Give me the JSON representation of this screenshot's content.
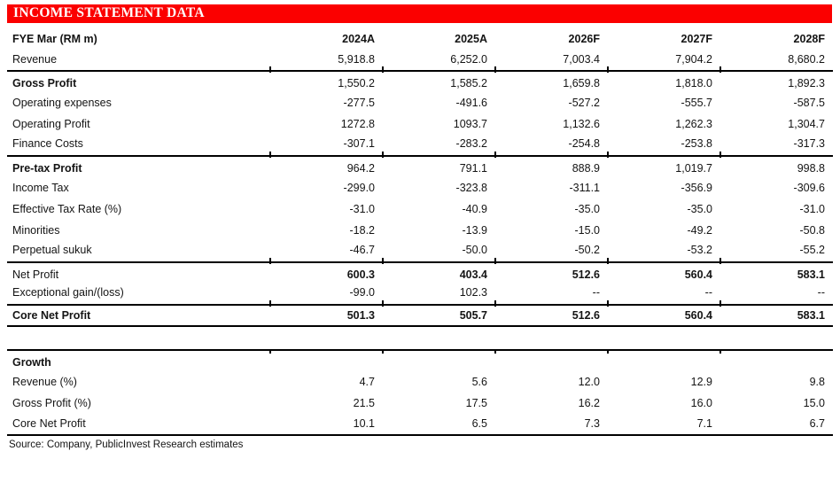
{
  "title": "INCOME STATEMENT DATA",
  "colors": {
    "header_bar_bg": "#fb0000",
    "header_bar_text": "#ffffff",
    "rule_color": "#000000"
  },
  "income_table": {
    "columns": [
      "FYE Mar (RM m)",
      "2024A",
      "2025A",
      "2026F",
      "2027F",
      "2028F"
    ],
    "sections": [
      {
        "rows": [
          {
            "label": "Revenue",
            "bold_label": false,
            "bold_values": false,
            "values": [
              "5,918.8",
              "6,252.0",
              "7,003.4",
              "7,904.2",
              "8,680.2"
            ]
          }
        ]
      },
      {
        "rows": [
          {
            "label": "Gross Profit",
            "bold_label": true,
            "bold_values": false,
            "values": [
              "1,550.2",
              "1,585.2",
              "1,659.8",
              "1,818.0",
              "1,892.3"
            ]
          },
          {
            "label": "Operating expenses",
            "bold_label": false,
            "bold_values": false,
            "values": [
              "-277.5",
              "-491.6",
              "-527.2",
              "-555.7",
              "-587.5"
            ]
          },
          {
            "label": "Operating Profit",
            "bold_label": false,
            "bold_values": false,
            "values": [
              "1272.8",
              "1093.7",
              "1,132.6",
              "1,262.3",
              "1,304.7"
            ]
          },
          {
            "label": "Finance Costs",
            "bold_label": false,
            "bold_values": false,
            "values": [
              "-307.1",
              "-283.2",
              "-254.8",
              "-253.8",
              "-317.3"
            ]
          }
        ]
      },
      {
        "rows": [
          {
            "label": "Pre-tax Profit",
            "bold_label": true,
            "bold_values": false,
            "values": [
              "964.2",
              "791.1",
              "888.9",
              "1,019.7",
              "998.8"
            ]
          },
          {
            "label": "Income Tax",
            "bold_label": false,
            "bold_values": false,
            "values": [
              "-299.0",
              "-323.8",
              "-311.1",
              "-356.9",
              "-309.6"
            ]
          },
          {
            "label": "Effective Tax Rate (%)",
            "bold_label": false,
            "bold_values": false,
            "values": [
              "-31.0",
              "-40.9",
              "-35.0",
              "-35.0",
              "-31.0"
            ]
          },
          {
            "label": "Minorities",
            "bold_label": false,
            "bold_values": false,
            "values": [
              "-18.2",
              "-13.9",
              "-15.0",
              "-49.2",
              "-50.8"
            ]
          },
          {
            "label": "Perpetual sukuk",
            "bold_label": false,
            "bold_values": false,
            "values": [
              "-46.7",
              "-50.0",
              "-50.2",
              "-53.2",
              "-55.2"
            ]
          }
        ]
      },
      {
        "rows": [
          {
            "label": "Net Profit",
            "bold_label": false,
            "bold_values": true,
            "values": [
              "600.3",
              "403.4",
              "512.6",
              "560.4",
              "583.1"
            ]
          },
          {
            "label": "Exceptional gain/(loss)",
            "bold_label": false,
            "bold_values": false,
            "values": [
              "-99.0",
              "102.3",
              "--",
              "--",
              "--"
            ]
          }
        ]
      },
      {
        "rows": [
          {
            "label": "Core Net Profit",
            "bold_label": true,
            "bold_values": true,
            "values": [
              "501.3",
              "505.7",
              "512.6",
              "560.4",
              "583.1"
            ]
          }
        ]
      }
    ]
  },
  "growth_table": {
    "rows": [
      {
        "label": "Growth",
        "bold_label": true,
        "bold_values": false,
        "values": [
          "",
          "",
          "",
          "",
          ""
        ]
      },
      {
        "label": "Revenue (%)",
        "bold_label": false,
        "bold_values": false,
        "values": [
          "4.7",
          "5.6",
          "12.0",
          "12.9",
          "9.8"
        ]
      },
      {
        "label": "Gross Profit (%)",
        "bold_label": false,
        "bold_values": false,
        "values": [
          "21.5",
          "17.5",
          "16.2",
          "16.0",
          "15.0"
        ]
      },
      {
        "label": "Core Net Profit",
        "bold_label": false,
        "bold_values": false,
        "values": [
          "10.1",
          "6.5",
          "7.3",
          "7.1",
          "6.7"
        ]
      }
    ]
  },
  "source": "Source: Company, PublicInvest Research estimates"
}
